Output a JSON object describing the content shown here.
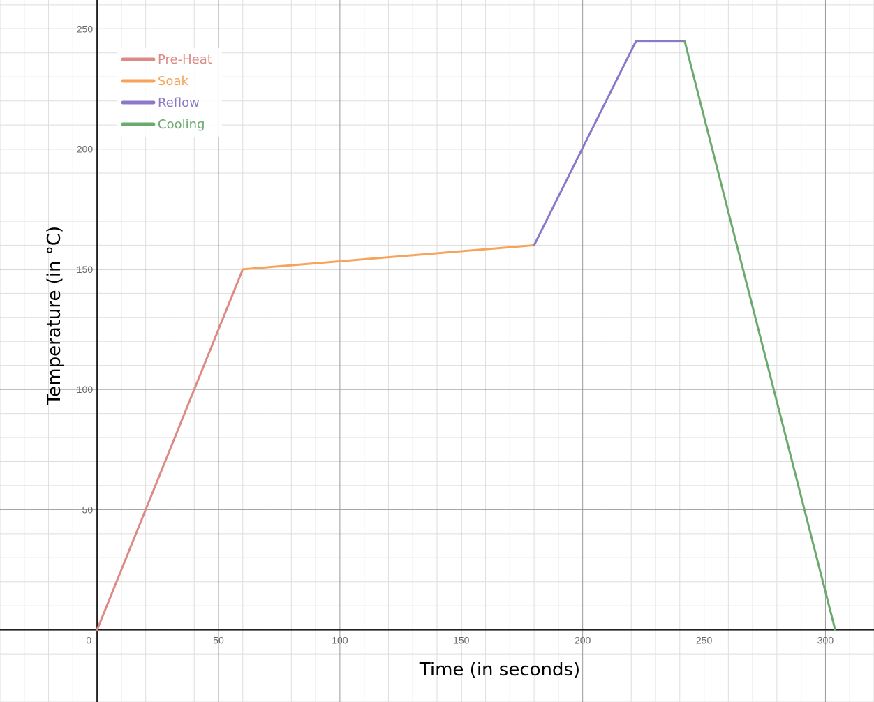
{
  "chart_data": {
    "type": "line",
    "xlabel": "Time (in seconds)",
    "ylabel": "Temperature (in °C)",
    "xlim": [
      -40,
      320
    ],
    "ylim": [
      -30,
      262
    ],
    "x_ticks": [
      0,
      50,
      100,
      150,
      200,
      250,
      300
    ],
    "y_ticks": [
      50,
      100,
      150,
      200,
      250
    ],
    "x_tick_labels": [
      "0",
      "50",
      "100",
      "150",
      "200",
      "250",
      "300"
    ],
    "y_tick_labels": [
      "50",
      "100",
      "150",
      "200",
      "250"
    ],
    "grid": true,
    "legend_position": "top-left",
    "series": [
      {
        "name": "Pre-Heat",
        "color": "#dc8a86",
        "points": [
          [
            0,
            0
          ],
          [
            60,
            150
          ]
        ]
      },
      {
        "name": "Soak",
        "color": "#f5a45a",
        "points": [
          [
            60,
            150
          ],
          [
            180,
            160
          ]
        ]
      },
      {
        "name": "Reflow",
        "color": "#8c78c8",
        "points": [
          [
            180,
            160
          ],
          [
            222,
            245
          ],
          [
            242,
            245
          ]
        ]
      },
      {
        "name": "Cooling",
        "color": "#6aaa6e",
        "points": [
          [
            242,
            245
          ],
          [
            304,
            0
          ]
        ]
      }
    ]
  }
}
